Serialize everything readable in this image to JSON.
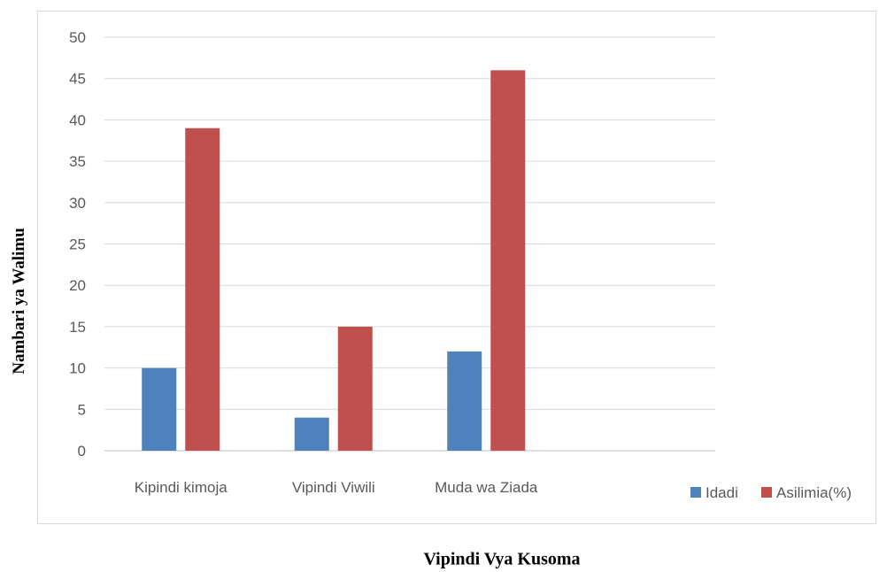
{
  "chart_data": {
    "type": "bar",
    "title": "",
    "xlabel": "Vipindi Vya Kusoma",
    "ylabel": "Nambari ya Walimu",
    "categories": [
      "Kipindi kimoja",
      "Vipindi Viwili",
      "Muda wa Ziada",
      ""
    ],
    "series": [
      {
        "name": "Idadi",
        "values": [
          10,
          4,
          12,
          null
        ],
        "color": "#4f81bd"
      },
      {
        "name": "Asilimia(%)",
        "values": [
          39,
          15,
          46,
          null
        ],
        "color": "#c0504d"
      }
    ],
    "ylim": [
      0,
      50
    ],
    "yticks": [
      "0",
      "5",
      "10",
      "15",
      "20",
      "25",
      "30",
      "35",
      "40",
      "45",
      "50"
    ],
    "grid": true,
    "legend_position": "bottom-right"
  }
}
